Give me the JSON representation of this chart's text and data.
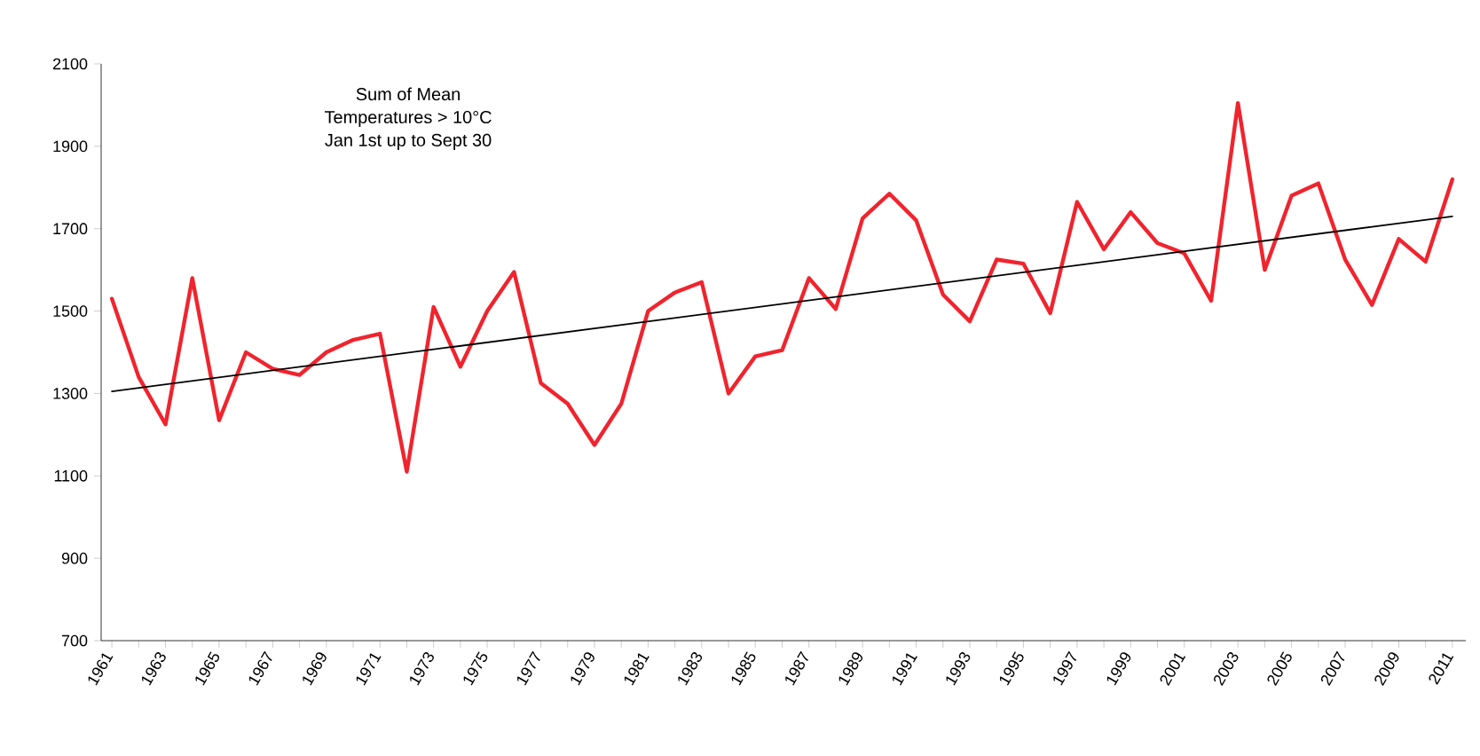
{
  "chart_data": {
    "type": "line",
    "annotations": [
      "Sum of Mean",
      "Temperatures > 10°C",
      "Jan 1st up to Sept 30"
    ],
    "x": [
      1961,
      1962,
      1963,
      1964,
      1965,
      1966,
      1967,
      1968,
      1969,
      1970,
      1971,
      1972,
      1973,
      1974,
      1975,
      1976,
      1977,
      1978,
      1979,
      1980,
      1981,
      1982,
      1983,
      1984,
      1985,
      1986,
      1987,
      1988,
      1989,
      1990,
      1991,
      1992,
      1993,
      1994,
      1995,
      1996,
      1997,
      1998,
      1999,
      2000,
      2001,
      2002,
      2003,
      2004,
      2005,
      2006,
      2007,
      2008,
      2009,
      2010,
      2011
    ],
    "series": [
      {
        "color": "#f0242e",
        "values": [
          1530,
          1340,
          1225,
          1580,
          1235,
          1400,
          1360,
          1345,
          1400,
          1430,
          1445,
          1110,
          1510,
          1365,
          1500,
          1595,
          1325,
          1275,
          1175,
          1275,
          1500,
          1545,
          1570,
          1300,
          1390,
          1405,
          1580,
          1505,
          1725,
          1785,
          1720,
          1540,
          1475,
          1625,
          1615,
          1495,
          1765,
          1650,
          1740,
          1665,
          1640,
          1525,
          2005,
          1600,
          1780,
          1810,
          1625,
          1515,
          1675,
          1620,
          1820
        ]
      },
      {
        "type": "line",
        "color": "#000000",
        "x": [
          1961,
          2011
        ],
        "values": [
          1305,
          1730
        ]
      }
    ],
    "xlim": [
      1960.6,
      2011.5
    ],
    "xticks": [
      1961,
      {
        "value": 1962,
        "label": null
      },
      1963,
      {
        "value": 1964,
        "label": null
      },
      1965,
      {
        "value": 1966,
        "label": null
      },
      1967,
      {
        "value": 1968,
        "label": null
      },
      1969,
      {
        "value": 1970,
        "label": null
      },
      1971,
      {
        "value": 1972,
        "label": null
      },
      1973,
      {
        "value": 1974,
        "label": null
      },
      1975,
      {
        "value": 1976,
        "label": null
      },
      1977,
      {
        "value": 1978,
        "label": null
      },
      1979,
      {
        "value": 1980,
        "label": null
      },
      1981,
      {
        "value": 1982,
        "label": null
      },
      1983,
      {
        "value": 1984,
        "label": null
      },
      1985,
      {
        "value": 1986,
        "label": null
      },
      1987,
      {
        "value": 1988,
        "label": null
      },
      1989,
      {
        "value": 1990,
        "label": null
      },
      1991,
      {
        "value": 1992,
        "label": null
      },
      1993,
      {
        "value": 1994,
        "label": null
      },
      1995,
      {
        "value": 1996,
        "label": null
      },
      1997,
      {
        "value": 1998,
        "label": null
      },
      1999,
      {
        "value": 2000,
        "label": null
      },
      2001,
      {
        "value": 2002,
        "label": null
      },
      2003,
      {
        "value": 2004,
        "label": null
      },
      2005,
      {
        "value": 2006,
        "label": null
      },
      2007,
      {
        "value": 2008,
        "label": null
      },
      2009,
      {
        "value": 2010,
        "label": null
      },
      2011
    ],
    "ylim": [
      700,
      2100
    ],
    "yticks": [
      700,
      900,
      1100,
      1300,
      1500,
      1700,
      1900,
      2100
    ],
    "grid": false,
    "legend": false,
    "marker": "none",
    "line_style": "solid"
  }
}
